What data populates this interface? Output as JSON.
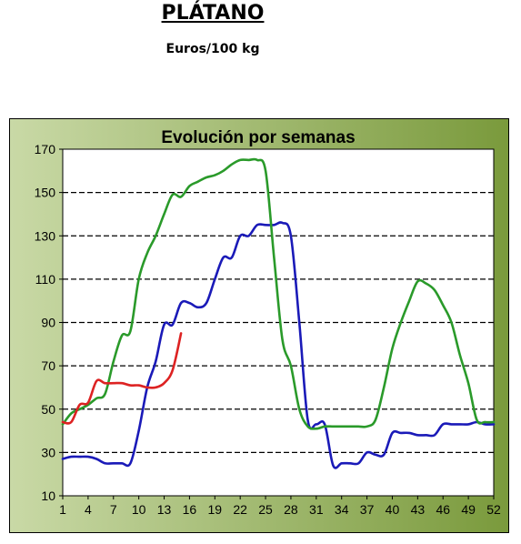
{
  "header": {
    "title": "PLÁTANO",
    "subtitle": "Euros/100 kg"
  },
  "chart_data": {
    "type": "line",
    "title": "Evolución por semanas",
    "xlabel": "",
    "ylabel": "",
    "x_ticks": [
      1,
      4,
      7,
      10,
      13,
      16,
      19,
      22,
      25,
      28,
      31,
      34,
      37,
      40,
      43,
      46,
      49,
      52
    ],
    "y_ticks": [
      10,
      30,
      50,
      70,
      90,
      110,
      130,
      150,
      170
    ],
    "xlim": [
      1,
      52
    ],
    "ylim": [
      10,
      170
    ],
    "grid": "horizontal dashed",
    "background_gradient": [
      "#c9d9a6",
      "#7a9a3c"
    ],
    "plot_background": "#ffffff",
    "series": [
      {
        "color": "#1a1ab8",
        "x": [
          1,
          2,
          3,
          4,
          5,
          6,
          7,
          8,
          9,
          10,
          11,
          12,
          13,
          14,
          15,
          16,
          17,
          18,
          19,
          20,
          21,
          22,
          23,
          24,
          25,
          26,
          27,
          28,
          29,
          30,
          31,
          32,
          33,
          34,
          35,
          36,
          37,
          38,
          39,
          40,
          41,
          42,
          43,
          44,
          45,
          46,
          47,
          48,
          49,
          50,
          51,
          52
        ],
        "values": [
          27,
          28,
          28,
          28,
          27,
          25,
          25,
          25,
          25,
          40,
          60,
          72,
          89,
          89,
          99,
          99,
          97,
          99,
          110,
          120,
          120,
          130,
          130,
          135,
          135,
          135,
          136,
          130,
          90,
          45,
          43,
          43,
          24,
          25,
          25,
          25,
          30,
          29,
          29,
          39,
          39,
          39,
          38,
          38,
          38,
          43,
          43,
          43,
          43,
          44,
          43,
          43
        ]
      },
      {
        "color": "#2a9a2a",
        "x": [
          1,
          2,
          3,
          4,
          5,
          6,
          7,
          8,
          9,
          10,
          11,
          12,
          13,
          14,
          15,
          16,
          17,
          18,
          19,
          20,
          21,
          22,
          23,
          24,
          25,
          26,
          27,
          28,
          29,
          30,
          31,
          32,
          33,
          34,
          35,
          36,
          37,
          38,
          39,
          40,
          41,
          42,
          43,
          44,
          45,
          46,
          47,
          48,
          49,
          50,
          51,
          52
        ],
        "values": [
          43,
          48,
          50,
          52,
          55,
          57,
          72,
          84,
          86,
          110,
          122,
          130,
          140,
          149,
          148,
          153,
          155,
          157,
          158,
          160,
          163,
          165,
          165,
          165,
          160,
          120,
          82,
          70,
          50,
          42,
          41,
          42,
          42,
          42,
          42,
          42,
          42,
          45,
          60,
          78,
          90,
          100,
          109,
          108,
          105,
          98,
          90,
          75,
          62,
          45,
          44,
          44
        ]
      },
      {
        "color": "#dd2222",
        "x": [
          1,
          2,
          3,
          4,
          5,
          6,
          7,
          8,
          9,
          10,
          11,
          12,
          13,
          14,
          15
        ],
        "values": [
          44,
          44,
          52,
          53,
          63,
          62,
          62,
          62,
          61,
          61,
          60,
          60,
          62,
          68,
          85
        ]
      }
    ]
  }
}
